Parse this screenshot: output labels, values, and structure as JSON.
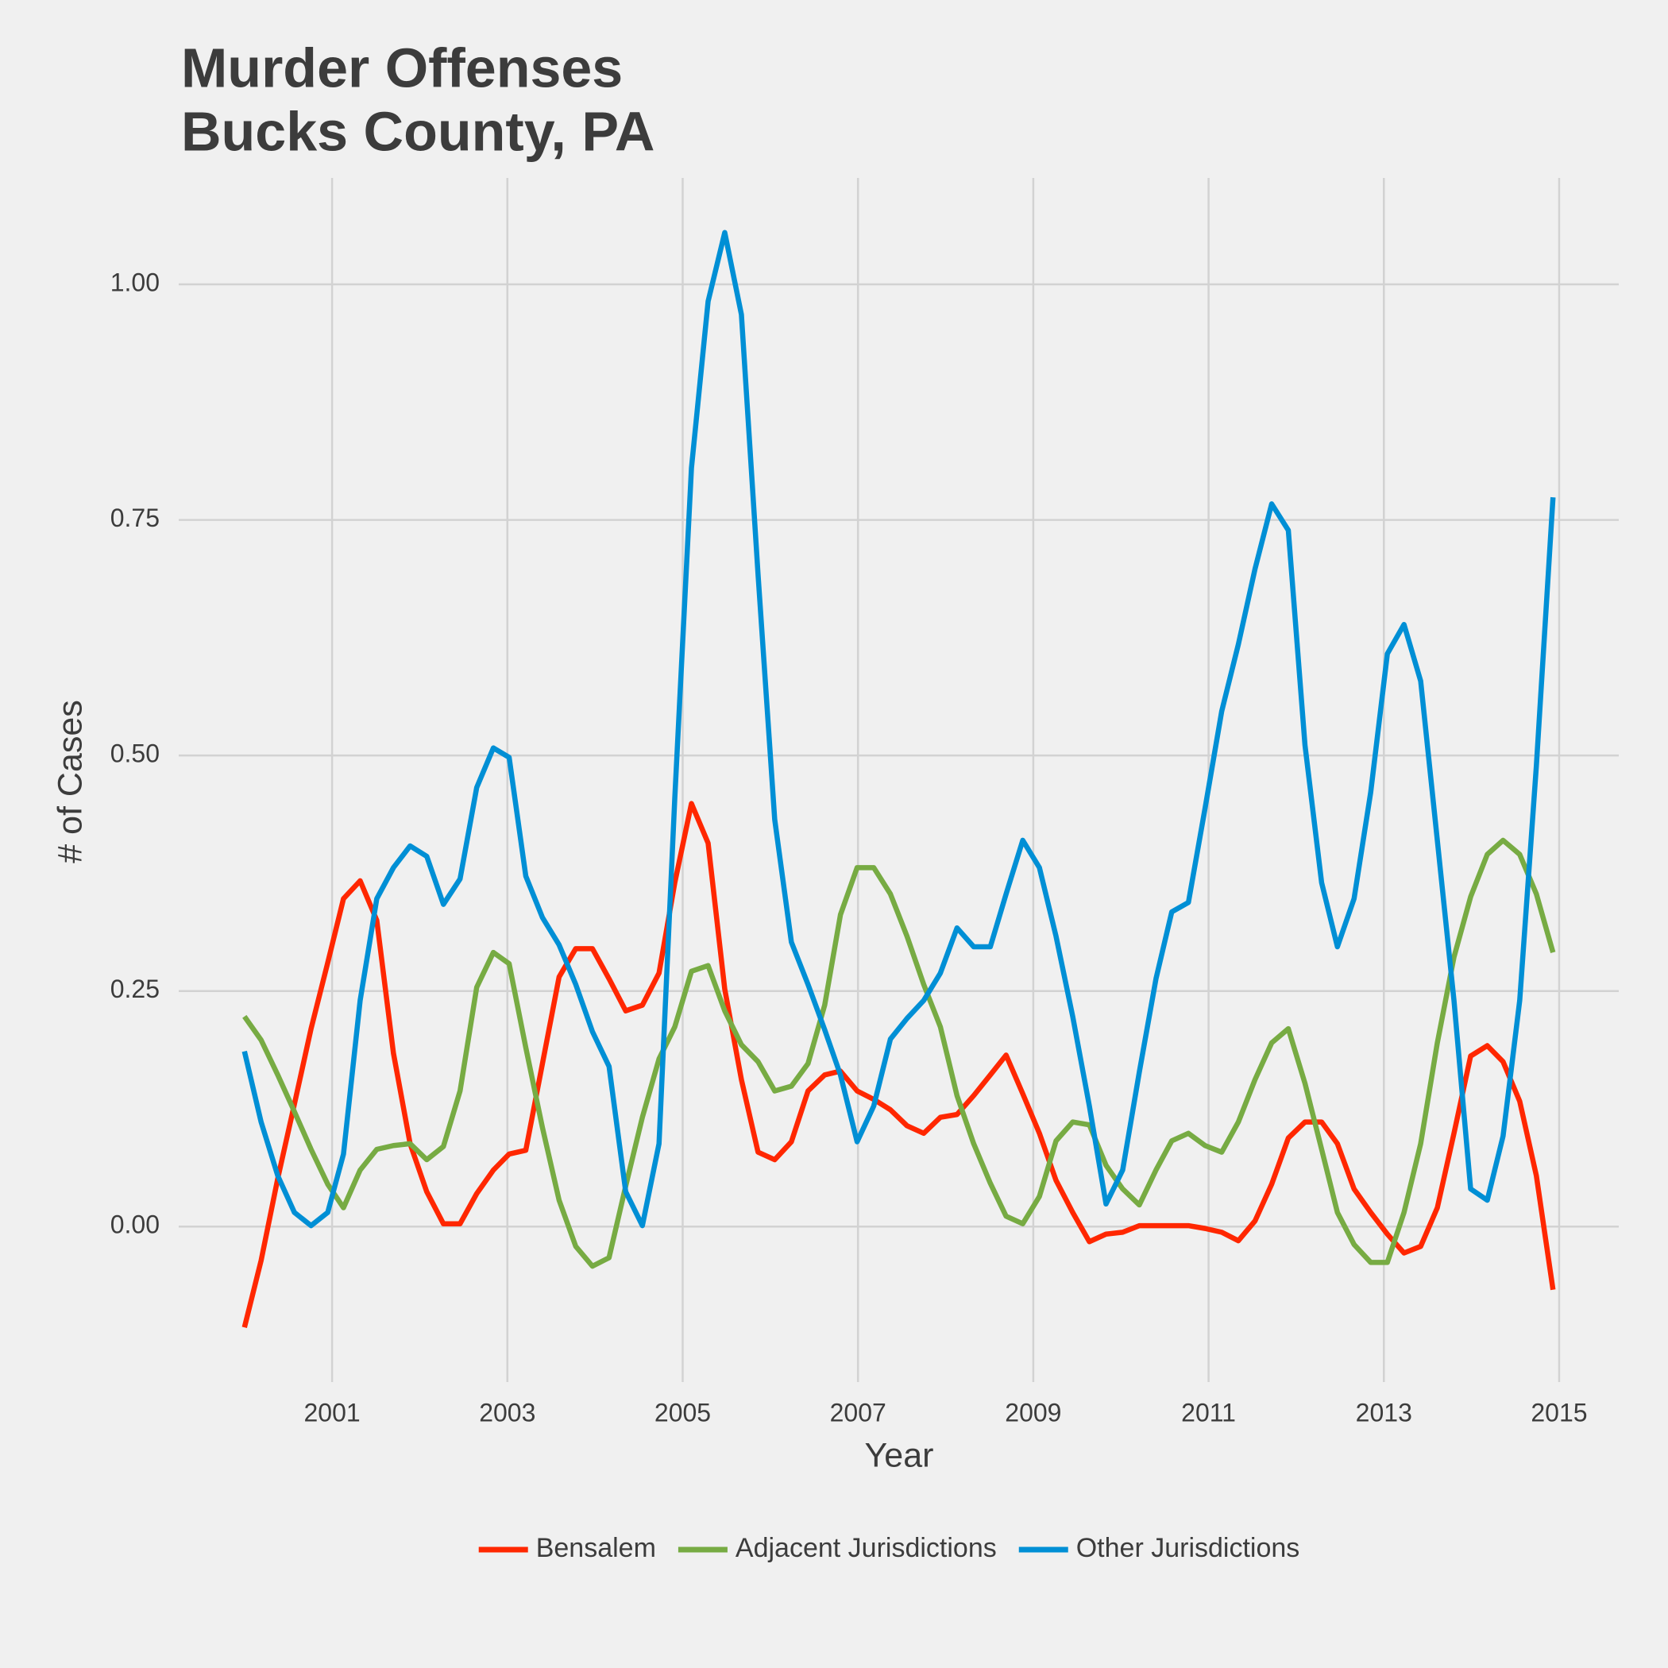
{
  "chart_data": {
    "type": "line",
    "title": [
      "Murder Offenses",
      "Bucks County, PA"
    ],
    "x_label": "Year",
    "y_label": "# of Cases",
    "x": [
      2000.0,
      2000.19,
      2000.38,
      2000.57,
      2000.76,
      2000.95,
      2001.13,
      2001.32,
      2001.51,
      2001.7,
      2001.89,
      2002.08,
      2002.27,
      2002.46,
      2002.65,
      2002.84,
      2003.02,
      2003.21,
      2003.4,
      2003.59,
      2003.78,
      2003.97,
      2004.16,
      2004.35,
      2004.54,
      2004.73,
      2004.91,
      2005.1,
      2005.29,
      2005.48,
      2005.67,
      2005.86,
      2006.05,
      2006.24,
      2006.43,
      2006.62,
      2006.8,
      2006.99,
      2007.18,
      2007.37,
      2007.56,
      2007.75,
      2007.94,
      2008.13,
      2008.32,
      2008.51,
      2008.69,
      2008.88,
      2009.07,
      2009.26,
      2009.45,
      2009.64,
      2009.83,
      2010.02,
      2010.21,
      2010.4,
      2010.58,
      2010.77,
      2010.96,
      2011.15,
      2011.34,
      2011.53,
      2011.72,
      2011.91,
      2012.1,
      2012.29,
      2012.47,
      2012.66,
      2012.85,
      2013.04,
      2013.23,
      2013.42,
      2013.61,
      2013.8,
      2013.99,
      2014.18,
      2014.36,
      2014.55,
      2014.74,
      2014.93
    ],
    "series": [
      {
        "name": "Bensalem",
        "color": "#ff2700",
        "values": [
          -0.107,
          -0.036,
          0.051,
          0.13,
          0.21,
          0.28,
          0.348,
          0.367,
          0.325,
          0.184,
          0.088,
          0.037,
          0.003,
          0.003,
          0.035,
          0.06,
          0.077,
          0.081,
          0.173,
          0.265,
          0.295,
          0.295,
          0.263,
          0.229,
          0.235,
          0.269,
          0.365,
          0.449,
          0.407,
          0.252,
          0.156,
          0.079,
          0.071,
          0.09,
          0.144,
          0.161,
          0.165,
          0.144,
          0.135,
          0.124,
          0.107,
          0.099,
          0.116,
          0.119,
          0.139,
          0.161,
          0.182,
          0.141,
          0.099,
          0.049,
          0.015,
          -0.016,
          -0.008,
          -0.006,
          0.001,
          0.001,
          0.001,
          0.001,
          -0.002,
          -0.006,
          -0.015,
          0.006,
          0.045,
          0.094,
          0.111,
          0.111,
          0.088,
          0.04,
          0.015,
          -0.008,
          -0.028,
          -0.021,
          0.02,
          0.099,
          0.181,
          0.192,
          0.175,
          0.133,
          0.054,
          -0.067
        ]
      },
      {
        "name": "Adjacent Jurisdictions",
        "color": "#77ab43",
        "values": [
          0.223,
          0.198,
          0.161,
          0.122,
          0.082,
          0.045,
          0.02,
          0.06,
          0.082,
          0.086,
          0.088,
          0.071,
          0.085,
          0.144,
          0.254,
          0.291,
          0.279,
          0.19,
          0.105,
          0.028,
          -0.021,
          -0.042,
          -0.033,
          0.043,
          0.116,
          0.178,
          0.212,
          0.271,
          0.277,
          0.229,
          0.193,
          0.175,
          0.144,
          0.149,
          0.173,
          0.235,
          0.331,
          0.381,
          0.381,
          0.353,
          0.308,
          0.257,
          0.212,
          0.139,
          0.088,
          0.046,
          0.011,
          0.003,
          0.032,
          0.091,
          0.111,
          0.108,
          0.065,
          0.04,
          0.023,
          0.06,
          0.091,
          0.099,
          0.086,
          0.079,
          0.111,
          0.156,
          0.195,
          0.21,
          0.152,
          0.082,
          0.015,
          -0.019,
          -0.038,
          -0.038,
          0.015,
          0.088,
          0.195,
          0.286,
          0.35,
          0.395,
          0.41,
          0.395,
          0.353,
          0.291
        ]
      },
      {
        "name": "Other Jurisdictions",
        "color": "#008fd5",
        "values": [
          0.186,
          0.111,
          0.054,
          0.015,
          0.001,
          0.015,
          0.077,
          0.24,
          0.348,
          0.381,
          0.404,
          0.393,
          0.342,
          0.369,
          0.466,
          0.508,
          0.498,
          0.372,
          0.328,
          0.299,
          0.257,
          0.207,
          0.17,
          0.037,
          0.001,
          0.088,
          0.455,
          0.805,
          0.982,
          1.055,
          0.968,
          0.692,
          0.432,
          0.302,
          0.257,
          0.209,
          0.161,
          0.09,
          0.128,
          0.199,
          0.221,
          0.24,
          0.269,
          0.317,
          0.297,
          0.297,
          0.353,
          0.41,
          0.381,
          0.308,
          0.223,
          0.128,
          0.024,
          0.06,
          0.164,
          0.263,
          0.334,
          0.344,
          0.444,
          0.547,
          0.618,
          0.698,
          0.767,
          0.739,
          0.511,
          0.365,
          0.297,
          0.348,
          0.461,
          0.608,
          0.639,
          0.579,
          0.41,
          0.24,
          0.04,
          0.028,
          0.096,
          0.24,
          0.489,
          0.774
        ]
      }
    ],
    "xlim": [
      1999.25,
      2015.68
    ],
    "ylim": [
      -0.165,
      1.113
    ],
    "xticks": [
      2001,
      2003,
      2005,
      2007,
      2009,
      2011,
      2013,
      2015
    ],
    "yticks": [
      {
        "value": 0,
        "label": "0.00"
      },
      {
        "value": 0.25,
        "label": "0.25"
      },
      {
        "value": 0.5,
        "label": "0.50"
      },
      {
        "value": 0.75,
        "label": "0.75"
      },
      {
        "value": 1,
        "label": "1.00"
      }
    ],
    "grid": true,
    "legend": "bottom"
  }
}
